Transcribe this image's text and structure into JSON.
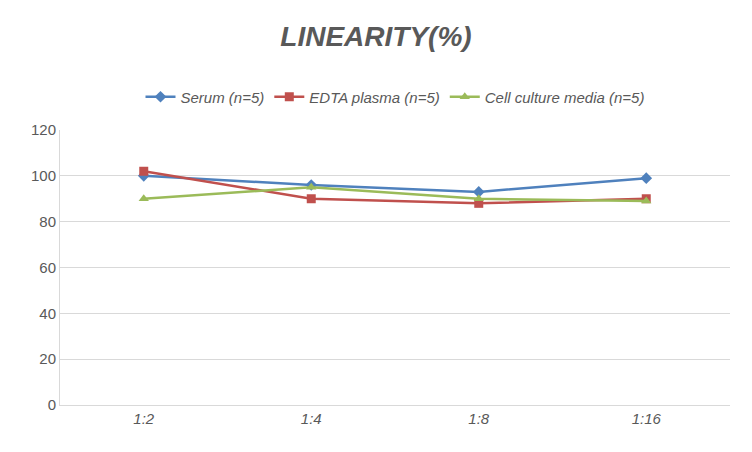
{
  "chart_data": {
    "type": "line",
    "title": "LINEARITY(%)",
    "categories": [
      "1:2",
      "1:4",
      "1:8",
      "1:16"
    ],
    "series": [
      {
        "name": "Serum (n=5)",
        "color": "#4f81bd",
        "marker": "diamond",
        "values": [
          100,
          96,
          93,
          99
        ]
      },
      {
        "name": "EDTA plasma (n=5)",
        "color": "#c0504d",
        "marker": "square",
        "values": [
          102,
          90,
          88,
          90
        ]
      },
      {
        "name": "Cell culture media (n=5)",
        "color": "#9bbb59",
        "marker": "triangle",
        "values": [
          90,
          95,
          90,
          89
        ]
      }
    ],
    "ylim": [
      0,
      120
    ],
    "yticks": [
      0,
      20,
      40,
      60,
      80,
      100,
      120
    ],
    "grid": true,
    "legend": "top"
  }
}
